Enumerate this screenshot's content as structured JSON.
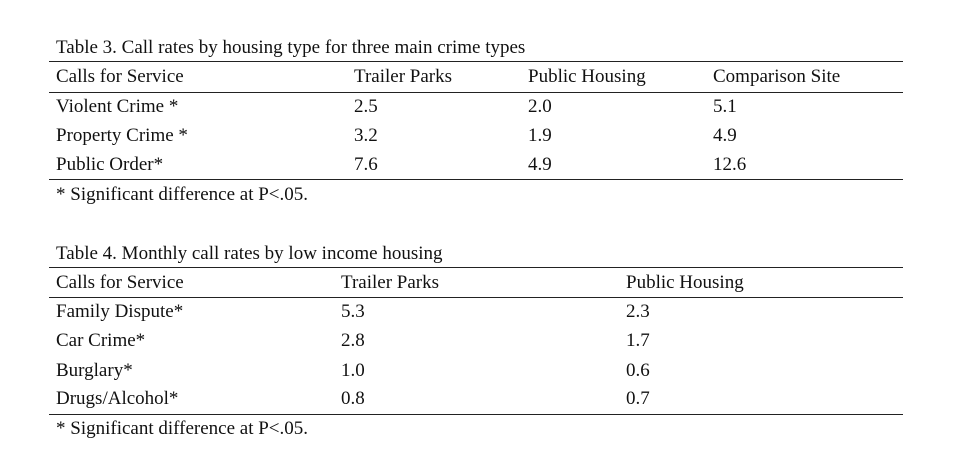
{
  "table3": {
    "caption": "Table 3. Call rates by housing  type for three main crime types",
    "headers": [
      "Calls for Service",
      "Trailer Parks",
      "Public Housing",
      "Comparison Site"
    ],
    "rows": [
      [
        "Violent  Crime *",
        "2.5",
        "2.0",
        "5.1"
      ],
      [
        "Property Crime *",
        "3.2",
        "1.9",
        "4.9"
      ],
      [
        "Public Order*",
        "7.6",
        "4.9",
        "12.6"
      ]
    ],
    "note": "* Significant  difference  at P<.05."
  },
  "table4": {
    "caption": "Table 4. Monthly  call  rates by low  income housing",
    "headers": [
      "Calls for Service",
      "Trailer Parks",
      "Public Housing"
    ],
    "rows": [
      [
        "Family  Dispute*",
        "5.3",
        "2.3"
      ],
      [
        "Car Crime*",
        "2.8",
        "1.7"
      ],
      [
        "Burglary*",
        "1.0",
        "0.6"
      ],
      [
        "Drugs/Alcohol*",
        "0.8",
        "0.7"
      ]
    ],
    "note": "* Significant  difference  at P<.05."
  }
}
